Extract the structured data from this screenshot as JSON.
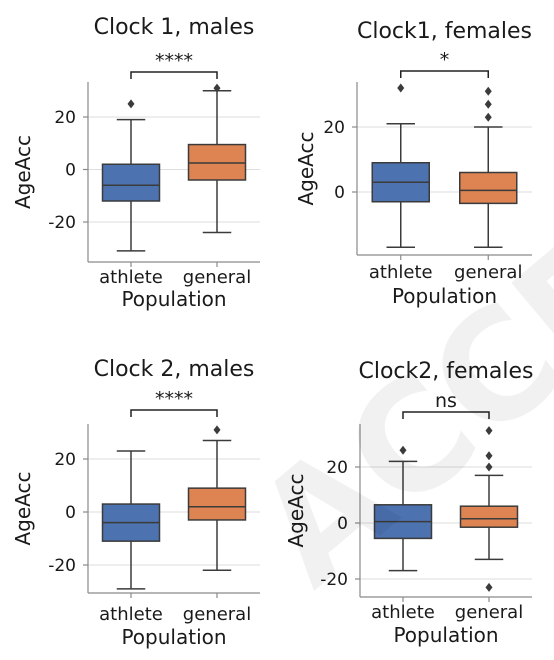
{
  "colors": {
    "athlete": "#4c72b0",
    "general": "#dd8452"
  },
  "watermark": {
    "text": "ACCEPTED"
  },
  "chart_data": [
    {
      "type": "box",
      "title": "Clock 1, males",
      "ylabel": "AgeAcc",
      "xlabel": "Population",
      "categories": [
        "athlete",
        "general"
      ],
      "ylim": [
        -35,
        36
      ],
      "yticks": [
        -20,
        0,
        20
      ],
      "grid": true,
      "significance": "****",
      "boxes": [
        {
          "name": "athlete",
          "whisker_low": -31,
          "q1": -12,
          "median": -6,
          "q3": 2,
          "whisker_high": 19,
          "outliers": [
            25
          ]
        },
        {
          "name": "general",
          "whisker_low": -24,
          "q1": -4,
          "median": 2.5,
          "q3": 9.5,
          "whisker_high": 30,
          "outliers": [
            31
          ]
        }
      ]
    },
    {
      "type": "box",
      "title": "Clock1, females",
      "ylabel": "AgeAcc",
      "xlabel": "Population",
      "categories": [
        "athlete",
        "general"
      ],
      "ylim": [
        -18,
        34
      ],
      "yticks": [
        0,
        20
      ],
      "grid": true,
      "significance": "*",
      "boxes": [
        {
          "name": "athlete",
          "whisker_low": -17,
          "q1": -3,
          "median": 3,
          "q3": 9,
          "whisker_high": 21,
          "outliers": [
            32
          ]
        },
        {
          "name": "general",
          "whisker_low": -17,
          "q1": -3.5,
          "median": 0.5,
          "q3": 6,
          "whisker_high": 20,
          "outliers": [
            23,
            27,
            31
          ]
        }
      ]
    },
    {
      "type": "box",
      "title": "Clock 2, males",
      "ylabel": "AgeAcc",
      "xlabel": "Population",
      "categories": [
        "athlete",
        "general"
      ],
      "ylim": [
        -30,
        33
      ],
      "yticks": [
        -20,
        0,
        20
      ],
      "grid": true,
      "significance": "****",
      "boxes": [
        {
          "name": "athlete",
          "whisker_low": -29,
          "q1": -11,
          "median": -4,
          "q3": 3,
          "whisker_high": 23,
          "outliers": []
        },
        {
          "name": "general",
          "whisker_low": -22,
          "q1": -3,
          "median": 2,
          "q3": 9,
          "whisker_high": 27,
          "outliers": [
            31
          ]
        }
      ]
    },
    {
      "type": "box",
      "title": "Clock2, females",
      "ylabel": "AgeAcc",
      "xlabel": "Population",
      "categories": [
        "athlete",
        "general"
      ],
      "ylim": [
        -25,
        37
      ],
      "yticks": [
        -20,
        0,
        20
      ],
      "grid": true,
      "significance": "ns",
      "boxes": [
        {
          "name": "athlete",
          "whisker_low": -17,
          "q1": -5.5,
          "median": 0.5,
          "q3": 6.5,
          "whisker_high": 22,
          "outliers": [
            26
          ]
        },
        {
          "name": "general",
          "whisker_low": -13,
          "q1": -1.5,
          "median": 1.5,
          "q3": 6,
          "whisker_high": 17,
          "outliers": [
            -23,
            20,
            24,
            33
          ]
        }
      ]
    }
  ]
}
